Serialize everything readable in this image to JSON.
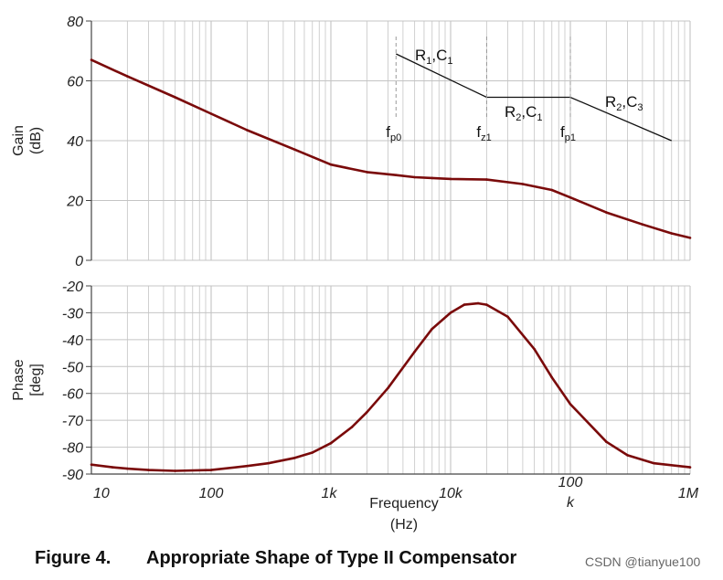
{
  "chart_data": [
    {
      "type": "line",
      "x_scale": "log",
      "xlim": [
        10,
        1000000
      ],
      "ylim": [
        0,
        80
      ],
      "yticks": [
        "0",
        "20",
        "40",
        "60",
        "80"
      ],
      "ylabel": "Gain",
      "yunit": "(dB)",
      "grid": true,
      "series": [
        {
          "color": "#7a0a0a",
          "x": [
            10,
            20,
            50,
            100,
            200,
            500,
            1000,
            2000,
            3500,
            5000,
            7000,
            10000,
            20000,
            40000,
            70000,
            100000,
            200000,
            400000,
            700000,
            1000000
          ],
          "values": [
            67,
            61.5,
            54.5,
            49,
            43.5,
            37,
            32,
            29.5,
            28.5,
            27.8,
            27.5,
            27.2,
            27,
            25.5,
            23.5,
            21,
            16,
            12,
            9,
            7.5
          ]
        }
      ],
      "annotations": {
        "asymptote_x": [
          3500,
          20000,
          100000,
          700000
        ],
        "asymptote_y": [
          69,
          54.5,
          54.5,
          40
        ],
        "markers_x": [
          3500,
          20000,
          100000
        ],
        "marker_labels": [
          {
            "main": "f",
            "sub": "p0"
          },
          {
            "main": "f",
            "sub": "z1"
          },
          {
            "main": "f",
            "sub": "p1"
          }
        ],
        "segment_labels": [
          {
            "a": "R",
            "as": "1",
            "b": ",C",
            "bs": "1"
          },
          {
            "a": "R",
            "as": "2",
            "b": ",C",
            "bs": "1"
          },
          {
            "a": "R",
            "as": "2",
            "b": ",C",
            "bs": "3"
          }
        ]
      }
    },
    {
      "type": "line",
      "x_scale": "log",
      "xlim": [
        10,
        1000000
      ],
      "ylim": [
        -90,
        -20
      ],
      "yticks": [
        "-20",
        "-30",
        "-40",
        "-50",
        "-60",
        "-70",
        "-80",
        "-90"
      ],
      "xticks": [
        "10",
        "100",
        "1k",
        "10k",
        "100",
        "k",
        "1M"
      ],
      "ylabel": "Phase",
      "yunit": "[deg]",
      "xlabel": "Frequency",
      "xunit": "(Hz)",
      "grid": true,
      "series": [
        {
          "color": "#7a0a0a",
          "x": [
            10,
            15,
            20,
            30,
            50,
            100,
            200,
            300,
            500,
            700,
            1000,
            1500,
            2000,
            3000,
            5000,
            7000,
            10000,
            13000,
            17000,
            20000,
            30000,
            50000,
            70000,
            100000,
            200000,
            300000,
            500000,
            1000000
          ],
          "values": [
            -86.5,
            -87.5,
            -88,
            -88.5,
            -88.8,
            -88.5,
            -87,
            -86,
            -84,
            -82,
            -78.5,
            -72.5,
            -67,
            -58,
            -44.5,
            -36,
            -30,
            -27,
            -26.5,
            -27,
            -31.5,
            -43.5,
            -54,
            -64,
            -78,
            -83,
            -86,
            -87.5
          ]
        }
      ]
    }
  ],
  "caption": {
    "number": "Figure 4.",
    "title": "Appropriate Shape of Type II Compensator"
  },
  "watermark": "CSDN @tianyue100"
}
